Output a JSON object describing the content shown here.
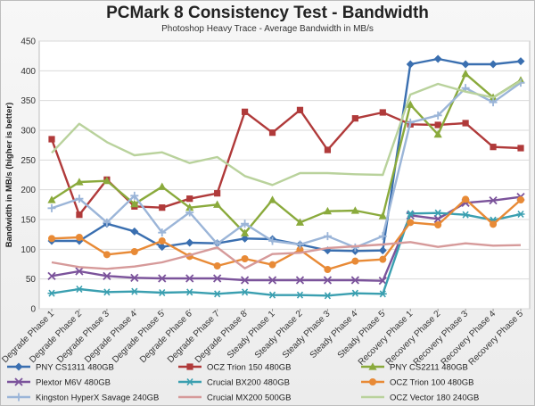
{
  "chart_data": {
    "type": "line",
    "title": "PCMark 8 Consistency Test - Bandwidth",
    "subtitle": "Photoshop Heavy Trace - Average Bandwidth in MB/s",
    "xlabel": "",
    "ylabel": "Bandwidth in MB/s (higher is better)",
    "ylim": [
      0,
      450
    ],
    "yticks": [
      0,
      50,
      100,
      150,
      200,
      250,
      300,
      350,
      400,
      450
    ],
    "grid": true,
    "legend_position": "bottom",
    "categories": [
      "Degrade Phase 1",
      "Degrade Phase 2",
      "Degrade Phase 3",
      "Degrade Phase 4",
      "Degrade Phase 5",
      "Degrade Phase 6",
      "Degrade Phase 7",
      "Degrade Phase 8",
      "Steady Phase 1",
      "Steady Phase 2",
      "Steady Phase 3",
      "Steady Phase 4",
      "Steady Phase 5",
      "Recovery Phase 1",
      "Recovery Phase 2",
      "Recovery Phase 3",
      "Recovery Phase 4",
      "Recovery Phase 5"
    ],
    "series": [
      {
        "name": "PNY CS1311 480GB",
        "color": "#3a6fb0",
        "marker": "diamond",
        "values": [
          114,
          114,
          143,
          130,
          104,
          111,
          110,
          118,
          117,
          108,
          98,
          97,
          98,
          411,
          420,
          411,
          411,
          416
        ]
      },
      {
        "name": "OCZ Trion 150 480GB",
        "color": "#b03a3a",
        "marker": "square",
        "values": [
          285,
          158,
          217,
          172,
          170,
          185,
          194,
          331,
          296,
          334,
          267,
          320,
          330,
          310,
          309,
          312,
          272,
          270
        ]
      },
      {
        "name": "PNY CS2211 480GB",
        "color": "#8aaa3c",
        "marker": "triangle",
        "values": [
          183,
          213,
          215,
          176,
          205,
          170,
          175,
          127,
          183,
          145,
          164,
          165,
          156,
          343,
          293,
          395,
          355,
          384
        ]
      },
      {
        "name": "Plextor M6V 480GB",
        "color": "#7b539b",
        "marker": "x",
        "values": [
          55,
          63,
          55,
          52,
          51,
          51,
          51,
          48,
          48,
          48,
          48,
          48,
          47,
          157,
          151,
          178,
          182,
          188
        ]
      },
      {
        "name": "Crucial BX200 480GB",
        "color": "#3a9fb0",
        "marker": "star",
        "values": [
          26,
          33,
          28,
          29,
          27,
          28,
          25,
          28,
          23,
          23,
          22,
          26,
          25,
          160,
          161,
          158,
          149,
          159
        ]
      },
      {
        "name": "OCZ Trion 100 480GB",
        "color": "#e88a36",
        "marker": "circle",
        "values": [
          118,
          120,
          91,
          96,
          114,
          88,
          72,
          84,
          74,
          99,
          66,
          80,
          83,
          145,
          141,
          184,
          142,
          183
        ]
      },
      {
        "name": "Kingston HyperX Savage 240GB",
        "color": "#9bb5d8",
        "marker": "plus",
        "values": [
          169,
          185,
          145,
          190,
          128,
          162,
          109,
          143,
          114,
          108,
          122,
          103,
          122,
          313,
          325,
          371,
          347,
          380
        ]
      },
      {
        "name": "Crucial MX200 500GB",
        "color": "#d69a9a",
        "marker": "none",
        "values": [
          78,
          70,
          67,
          71,
          78,
          90,
          103,
          68,
          92,
          94,
          102,
          105,
          108,
          112,
          104,
          110,
          106,
          107
        ]
      },
      {
        "name": "OCZ Vector 180 240GB",
        "color": "#b9d29c",
        "marker": "none",
        "values": [
          262,
          311,
          280,
          258,
          263,
          245,
          255,
          223,
          208,
          228,
          228,
          226,
          225,
          360,
          378,
          365,
          355,
          383
        ]
      }
    ]
  }
}
